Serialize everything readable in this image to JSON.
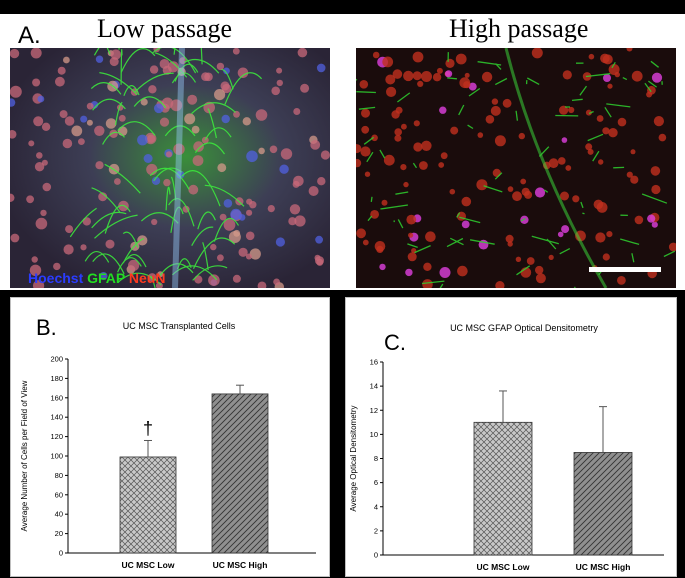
{
  "panel_a": {
    "label": "A.",
    "left_title": "Low passage",
    "right_title": "High passage",
    "legend": {
      "hoechst": "Hoechst",
      "gfap": "GFAP",
      "neun": "NeuN"
    }
  },
  "colors": {
    "hoechst": "#2a3cff",
    "gfap": "#22dd22",
    "neun": "#ff3a1f",
    "bar_low": "#c8c8c8",
    "bar_high": "#8f8f8f"
  },
  "chart_data": [
    {
      "type": "bar",
      "panel_label": "B.",
      "title": "UC    MSC Transplanted Cells",
      "ylabel": "Average Number of Cells per Field of View",
      "xlabel": "",
      "categories": [
        "UC MSC Low",
        "UC MSC High"
      ],
      "values": [
        99,
        164
      ],
      "errors": [
        17,
        9
      ],
      "ylim": [
        0,
        200
      ],
      "yticks": [
        0,
        20,
        40,
        60,
        80,
        100,
        120,
        140,
        160,
        180,
        200
      ],
      "annotations": [
        {
          "category": "UC MSC Low",
          "text": "†"
        }
      ],
      "patterns": [
        "crosshatch",
        "diagonal"
      ]
    },
    {
      "type": "bar",
      "panel_label": "C.",
      "title": "UC    MSC GFAP Optical Densitometry",
      "ylabel": "Average Optical Densitometry",
      "xlabel": "",
      "categories": [
        "UC MSC Low",
        "UC MSC High"
      ],
      "values": [
        11.0,
        8.5
      ],
      "errors": [
        2.6,
        3.8
      ],
      "ylim": [
        0,
        16
      ],
      "yticks": [
        0,
        2,
        4,
        6,
        8,
        10,
        12,
        14,
        16
      ],
      "annotations": [],
      "patterns": [
        "crosshatch",
        "diagonal"
      ]
    }
  ]
}
